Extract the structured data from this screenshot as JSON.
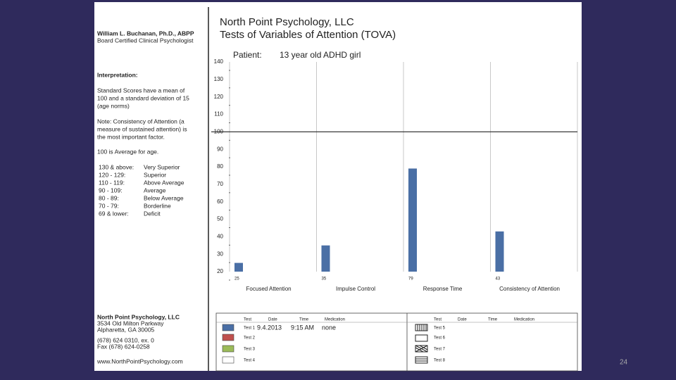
{
  "sidebar": {
    "name": "William L. Buchanan, Ph.D., ABPP",
    "credential": "Board Certified Clinical Psychologist",
    "interpretation_heading": "Interpretation:",
    "interpretation_lines": [
      "Standard Scores have a mean of",
      "100 and a standard deviation of 15",
      "(age norms)"
    ],
    "note_lines": [
      "Note:  Consistency of Attention (a",
      "measure of sustained attention) is",
      "the most important factor."
    ],
    "average": "100  is  Average  for  age.",
    "scale": [
      [
        "130 & above:",
        "Very Superior"
      ],
      [
        "120 - 129:",
        "Superior"
      ],
      [
        "110 - 119:",
        "Above Average"
      ],
      [
        "90 - 109:",
        "Average"
      ],
      [
        "80 - 89:",
        "Below Average"
      ],
      [
        "70 - 79:",
        "Borderline"
      ],
      [
        "69 & lower:",
        "Deficit"
      ]
    ],
    "address": [
      "North Point Psychology, LLC",
      "3534 Old Milton Parkway",
      "Alpharetta, GA 30005",
      "(678) 624 0310, ex. 0",
      "Fax (678) 624-0258",
      "www.NorthPointPsychology.com"
    ]
  },
  "header": {
    "title": "North Point Psychology, LLC",
    "subtitle": "Tests of Variables of Attention (TOVA)",
    "patient_label": "Patient:",
    "patient": "13 year old ADHD girl"
  },
  "chart_data": {
    "type": "bar",
    "categories": [
      "Focused Attention",
      "Impulse Control",
      "Response Time",
      "Consistency of Attention"
    ],
    "values": [
      25,
      35,
      79,
      43
    ],
    "color": "#4a6fa5",
    "ylim": [
      20,
      140
    ],
    "yticks": [
      20,
      30,
      40,
      50,
      60,
      70,
      80,
      90,
      100,
      110,
      120,
      130,
      140
    ],
    "reference_line": 100
  },
  "legend": {
    "headers": [
      "Test",
      "Date",
      "Time",
      "Medication"
    ],
    "left_rows": [
      {
        "test": "Test 1",
        "date": "9.4.2013",
        "time": "9:15 AM",
        "medication": "none",
        "color": "#4a6fa5"
      },
      {
        "test": "Test 2",
        "color": "#c0504d"
      },
      {
        "test": "Test 3",
        "color": "#9bbb59"
      },
      {
        "test": "Test 4",
        "color": "#ffffff"
      }
    ],
    "right_rows": [
      "Test 5",
      "Test 6",
      "Test 7",
      "Test 8"
    ]
  },
  "page_number": "24"
}
